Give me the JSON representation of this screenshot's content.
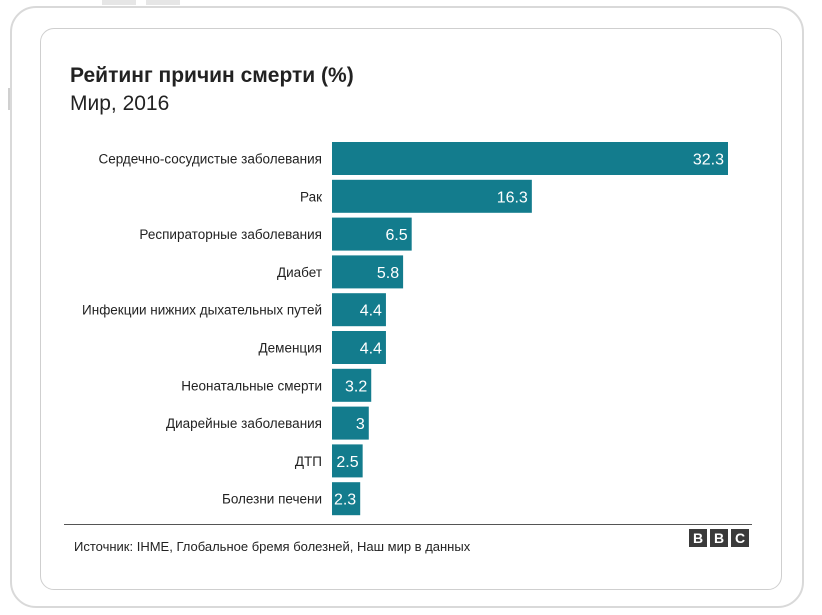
{
  "header": {
    "title": "Рейтинг причин смерти (%)",
    "subtitle": "Мир, 2016"
  },
  "footer": {
    "source": "Источник: IHME, Глобальное бремя болезней, Наш мир в данных",
    "logo_letters": [
      "B",
      "B",
      "C"
    ]
  },
  "chart_data": {
    "type": "bar",
    "orientation": "horizontal",
    "categories": [
      "Сердечно-сосудистые заболевания",
      "Рак",
      "Респираторные заболевания",
      "Диабет",
      "Инфекции нижних дыхательных путей",
      "Деменция",
      "Неонатальные смерти",
      "Диарейные заболевания",
      "ДТП",
      "Болезни печени"
    ],
    "values": [
      32.3,
      16.3,
      6.5,
      5.8,
      4.4,
      4.4,
      3.2,
      3,
      2.5,
      2.3
    ],
    "value_labels": [
      "32.3",
      "16.3",
      "6.5",
      "5.8",
      "4.4",
      "4.4",
      "3.2",
      "3",
      "2.5",
      "2.3"
    ],
    "title": "Рейтинг причин смерти (%)",
    "subtitle": "Мир, 2016",
    "xlim": [
      0,
      32.3
    ],
    "grid": false,
    "legend": "none",
    "bar_color": "#137c8d",
    "label_color": "#ffffff"
  }
}
